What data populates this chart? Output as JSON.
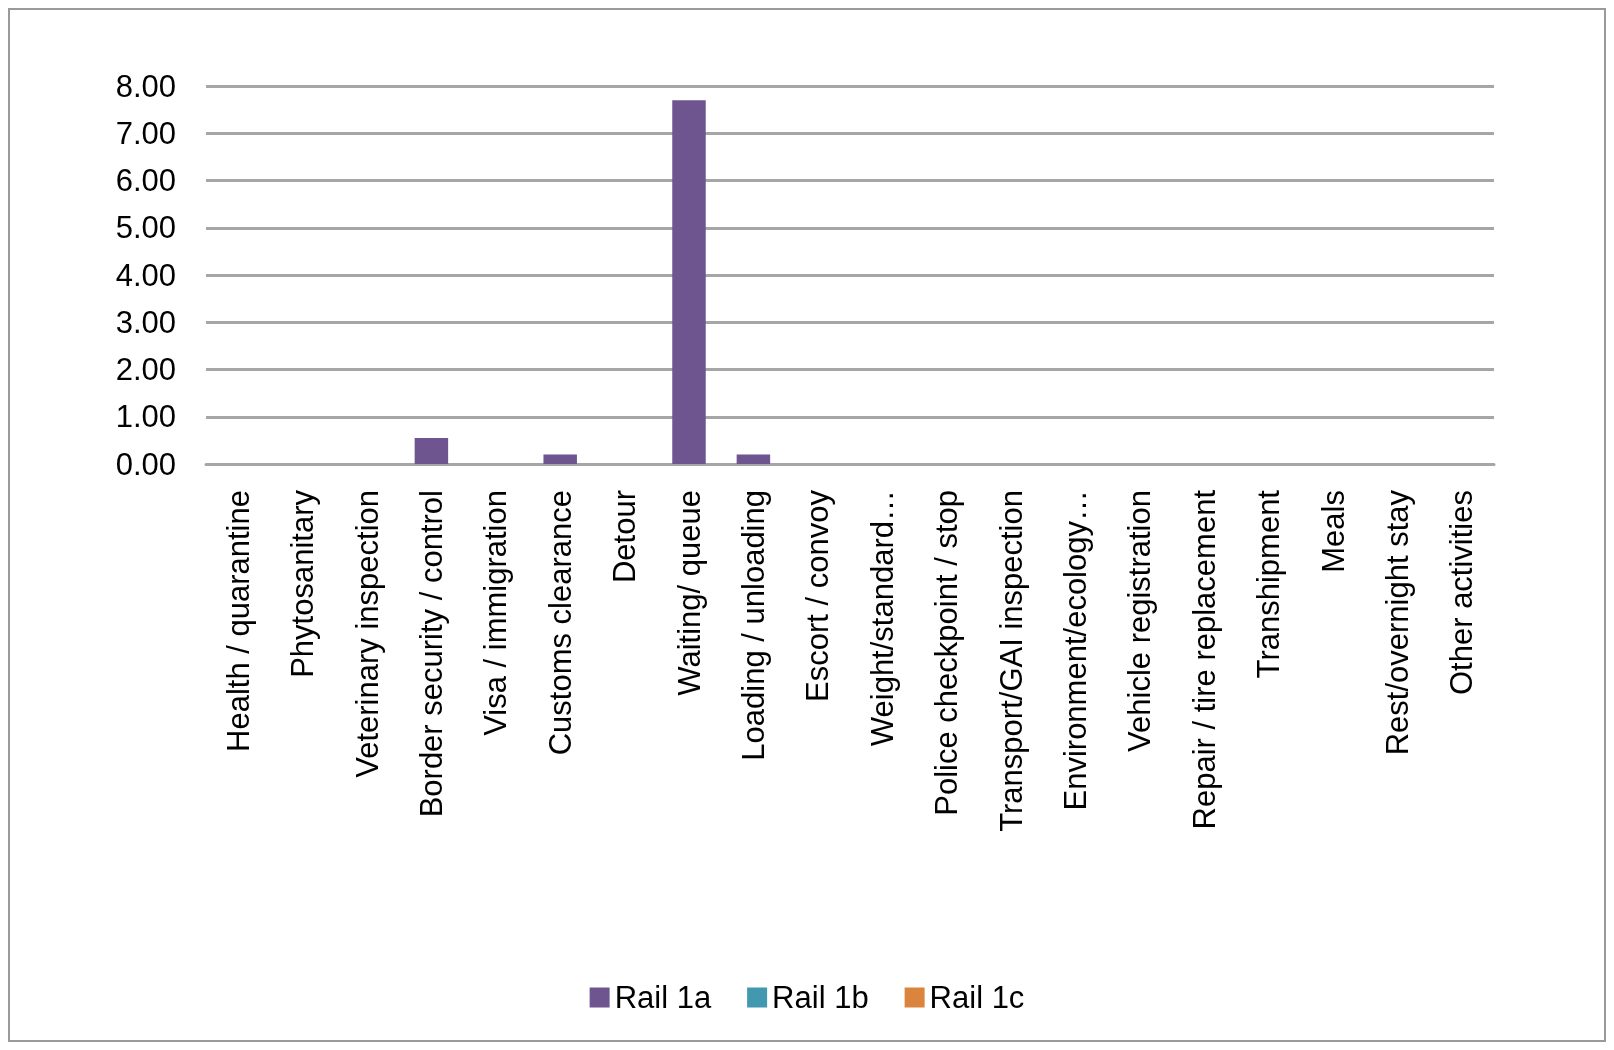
{
  "chart_data": {
    "type": "bar",
    "categories": [
      "Health / quarantine",
      "Phytosanitary",
      "Veterinary inspection",
      "Border security / control",
      "Visa / immigration",
      "Customs clearance",
      "Detour",
      "Waiting/ queue",
      "Loading / unloading",
      "Escort / convoy",
      "Weight/standard…",
      "Police checkpoint / stop",
      "Transport/GAI inspection",
      "Environment/ecology…",
      "Vehicle registration",
      "Repair / tire replacement",
      "Transhipment",
      "Meals",
      "Rest/overnight stay",
      "Other activities"
    ],
    "series": [
      {
        "name": "Rail 1a",
        "color": "#6f5590",
        "values": [
          0,
          0,
          0,
          0.55,
          0,
          0.2,
          0,
          7.7,
          0.2,
          0,
          0,
          0,
          0,
          0,
          0,
          0,
          0,
          0,
          0,
          0
        ]
      },
      {
        "name": "Rail 1b",
        "color": "#4198af",
        "values": [
          0,
          0,
          0,
          0,
          0,
          0,
          0,
          0,
          0,
          0,
          0,
          0,
          0,
          0,
          0,
          0,
          0,
          0,
          0,
          0
        ]
      },
      {
        "name": "Rail 1c",
        "color": "#db843d",
        "values": [
          0,
          0,
          0,
          0,
          0,
          0,
          0,
          0,
          0,
          0,
          0,
          0,
          0,
          0,
          0,
          0,
          0,
          0,
          0,
          0
        ]
      }
    ],
    "ylim": [
      0,
      8
    ],
    "yticks": [
      {
        "value": 0,
        "label": "0.00"
      },
      {
        "value": 1,
        "label": "1.00"
      },
      {
        "value": 2,
        "label": "2.00"
      },
      {
        "value": 3,
        "label": "3.00"
      },
      {
        "value": 4,
        "label": "4.00"
      },
      {
        "value": 5,
        "label": "5.00"
      },
      {
        "value": 6,
        "label": "6.00"
      },
      {
        "value": 7,
        "label": "7.00"
      },
      {
        "value": 8,
        "label": "8.00"
      }
    ],
    "grid": "y",
    "legend": "bottom"
  }
}
